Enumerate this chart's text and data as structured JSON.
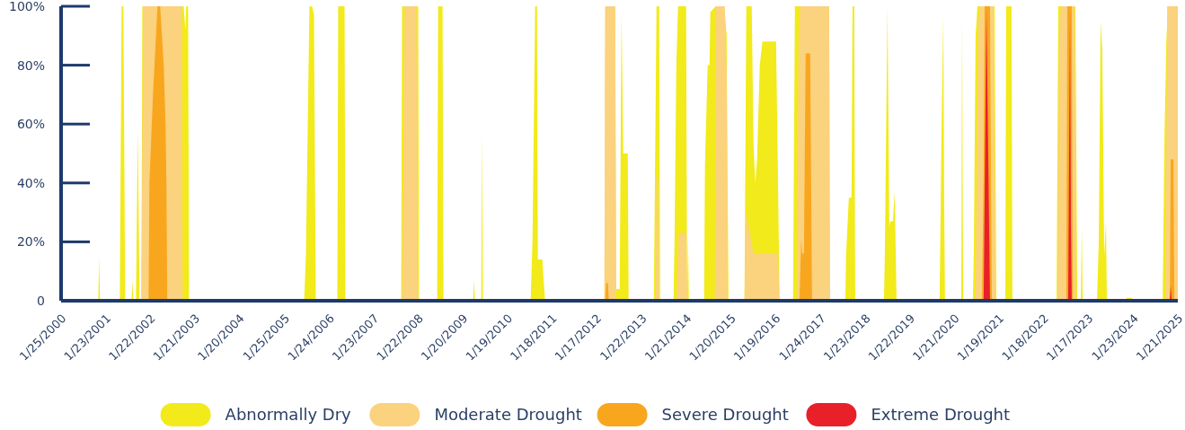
{
  "chart_data": {
    "type": "area",
    "legend": "bottom",
    "grid": false,
    "xlim": [
      "2000-01-25",
      "2025-01-21"
    ],
    "xticks": [
      {
        "value": "2000-01-25",
        "label": "1/25/2000"
      },
      {
        "value": "2001-01-23",
        "label": "1/23/2001"
      },
      {
        "value": "2002-01-22",
        "label": "1/22/2002"
      },
      {
        "value": "2003-01-21",
        "label": "1/21/2003"
      },
      {
        "value": "2004-01-20",
        "label": "1/20/2004"
      },
      {
        "value": "2005-01-25",
        "label": "1/25/2005"
      },
      {
        "value": "2006-01-24",
        "label": "1/24/2006"
      },
      {
        "value": "2007-01-23",
        "label": "1/23/2007"
      },
      {
        "value": "2008-01-22",
        "label": "1/22/2008"
      },
      {
        "value": "2009-01-20",
        "label": "1/20/2009"
      },
      {
        "value": "2010-01-19",
        "label": "1/19/2010"
      },
      {
        "value": "2011-01-18",
        "label": "1/18/2011"
      },
      {
        "value": "2012-01-17",
        "label": "1/17/2012"
      },
      {
        "value": "2013-01-22",
        "label": "1/22/2013"
      },
      {
        "value": "2014-01-21",
        "label": "1/21/2014"
      },
      {
        "value": "2015-01-20",
        "label": "1/20/2015"
      },
      {
        "value": "2016-01-19",
        "label": "1/19/2016"
      },
      {
        "value": "2017-01-24",
        "label": "1/24/2017"
      },
      {
        "value": "2018-01-23",
        "label": "1/23/2018"
      },
      {
        "value": "2019-01-22",
        "label": "1/22/2019"
      },
      {
        "value": "2020-01-21",
        "label": "1/21/2020"
      },
      {
        "value": "2021-01-19",
        "label": "1/19/2021"
      },
      {
        "value": "2022-01-18",
        "label": "1/18/2022"
      },
      {
        "value": "2023-01-17",
        "label": "1/17/2023"
      },
      {
        "value": "2024-01-23",
        "label": "1/23/2024"
      },
      {
        "value": "2025-01-21",
        "label": "1/21/2025"
      }
    ],
    "ylim": [
      0,
      100
    ],
    "yticks": [
      0,
      {
        "value": 20,
        "label": "20%"
      },
      {
        "value": 40,
        "label": "40%"
      },
      {
        "value": 60,
        "label": "60%"
      },
      {
        "value": 80,
        "label": "80%"
      },
      {
        "value": 100,
        "label": "100%"
      }
    ],
    "series": [
      {
        "name": "Abnormally Dry",
        "color": "#f2ea1a",
        "x": [
          "2000-11-24",
          "2000-12-01",
          "2000-12-08",
          "2001-05-19",
          "2001-06-03",
          "2001-06-17",
          "2001-07-02",
          "2001-08-23",
          "2001-08-30",
          "2001-09-06",
          "2001-09-28",
          "2001-10-13",
          "2001-10-28",
          "2001-11-11",
          "2001-11-19",
          "2002-10-23",
          "2002-11-06",
          "2002-11-13",
          "2002-11-28",
          "2002-12-06",
          "2005-07-04",
          "2005-07-18",
          "2005-08-16",
          "2005-09-07",
          "2005-09-22",
          "2005-10-07",
          "2006-04-01",
          "2006-04-08",
          "2006-05-30",
          "2006-06-06",
          "2007-09-05",
          "2007-09-12",
          "2008-01-22",
          "2008-01-29",
          "2008-06-25",
          "2008-07-03",
          "2008-08-08",
          "2008-08-16",
          "2009-04-15",
          "2009-04-22",
          "2009-04-29",
          "2009-06-20",
          "2009-06-27",
          "2009-07-04",
          "2010-07-29",
          "2010-08-13",
          "2010-09-04",
          "2010-09-19",
          "2010-09-26",
          "2010-11-02",
          "2010-11-09",
          "2010-11-24",
          "2012-03-23",
          "2012-03-30",
          "2012-06-19",
          "2012-06-27",
          "2012-07-26",
          "2012-08-10",
          "2012-08-24",
          "2012-09-30",
          "2012-10-07",
          "2013-05-01",
          "2013-05-23",
          "2013-06-14",
          "2013-06-21",
          "2013-10-09",
          "2013-10-17",
          "2013-11-01",
          "2013-11-15",
          "2014-01-20",
          "2014-01-28",
          "2014-02-04",
          "2014-02-11",
          "2014-06-16",
          "2014-06-23",
          "2014-07-15",
          "2014-07-30",
          "2014-08-06",
          "2014-09-19",
          "2014-11-10",
          "2014-12-02",
          "2014-12-17",
          "2015-01-01",
          "2015-05-12",
          "2015-05-27",
          "2015-07-10",
          "2015-07-25",
          "2015-08-08",
          "2015-08-23",
          "2015-09-14",
          "2015-10-06",
          "2016-01-25",
          "2016-02-08",
          "2016-02-23",
          "2016-06-12",
          "2016-06-27",
          "2017-04-03",
          "2017-04-10",
          "2017-08-13",
          "2017-08-20",
          "2017-09-11",
          "2017-10-03",
          "2017-10-11",
          "2017-10-25",
          "2017-11-02",
          "2018-06-25",
          "2018-07-02",
          "2018-07-24",
          "2018-08-08",
          "2018-08-15",
          "2018-09-06",
          "2018-09-21",
          "2018-10-06",
          "2019-09-23",
          "2019-10-08",
          "2019-10-23",
          "2019-10-30",
          "2019-11-06",
          "2020-03-18",
          "2020-03-25",
          "2020-04-02",
          "2020-06-21",
          "2020-06-29",
          "2020-07-13",
          "2020-07-28",
          "2020-12-15",
          "2020-12-30",
          "2021-03-13",
          "2021-03-20",
          "2021-05-03",
          "2021-05-10",
          "2022-05-06",
          "2022-05-20",
          "2022-10-07",
          "2022-10-22",
          "2022-11-20",
          "2022-11-28",
          "2022-12-05",
          "2023-04-01",
          "2023-04-16",
          "2023-05-01",
          "2023-05-15",
          "2023-05-30",
          "2023-06-14",
          "2023-06-21",
          "2023-11-22",
          "2023-11-30",
          "2024-01-13",
          "2024-01-20",
          "2024-09-19",
          "2024-10-04",
          "2024-10-19",
          "2024-11-02",
          "2025-01-21"
        ],
        "values": [
          0,
          15,
          0,
          0,
          100,
          100,
          0,
          0,
          7,
          0,
          0,
          58,
          0,
          0,
          100,
          100,
          92,
          100,
          100,
          0,
          0,
          15,
          100,
          100,
          97,
          0,
          0,
          100,
          100,
          0,
          0,
          100,
          100,
          0,
          0,
          100,
          100,
          0,
          0,
          7,
          0,
          0,
          57,
          0,
          0,
          20,
          100,
          100,
          14,
          14,
          9,
          0,
          0,
          100,
          100,
          4,
          4,
          98,
          50,
          50,
          0,
          0,
          100,
          100,
          0,
          0,
          20,
          80,
          100,
          100,
          0,
          23,
          0,
          0,
          46,
          80,
          80,
          98,
          100,
          100,
          98,
          90,
          0,
          0,
          100,
          100,
          53,
          40,
          48,
          80,
          88,
          88,
          47,
          0,
          0,
          100,
          100,
          0,
          0,
          16,
          35,
          35,
          100,
          100,
          0,
          0,
          15,
          100,
          25,
          27,
          27,
          37,
          0,
          0,
          55,
          97,
          35,
          0,
          0,
          97,
          0,
          0,
          18,
          90,
          100,
          100,
          0,
          0,
          100,
          100,
          0,
          0,
          100,
          100,
          0,
          0,
          25,
          0,
          0,
          20,
          95,
          85,
          15,
          27,
          0,
          0,
          1,
          1,
          0,
          0,
          55,
          88,
          100,
          100
        ]
      },
      {
        "name": "Moderate Drought",
        "color": "#fbd27e",
        "x": [
          "2001-11-11",
          "2001-11-26",
          "2002-10-08",
          "2002-10-15",
          "2007-09-12",
          "2007-10-03",
          "2008-01-07",
          "2008-01-22",
          "2012-03-23",
          "2012-03-30",
          "2012-06-19",
          "2012-06-27",
          "2013-05-15",
          "2013-05-23",
          "2013-06-06",
          "2013-06-14",
          "2013-11-01",
          "2013-11-22",
          "2014-01-20",
          "2014-01-28",
          "2014-09-12",
          "2014-09-19",
          "2014-12-02",
          "2014-12-17",
          "2014-12-24",
          "2015-05-12",
          "2015-05-27",
          "2015-07-25",
          "2016-02-08",
          "2016-02-23",
          "2016-07-12",
          "2016-07-27",
          "2016-08-10",
          "2017-04-03",
          "2017-04-10",
          "2020-07-13",
          "2020-08-04",
          "2020-08-19",
          "2020-12-07",
          "2020-12-22",
          "2022-05-13",
          "2022-05-27",
          "2022-06-11",
          "2022-09-30",
          "2022-10-14",
          "2024-10-11",
          "2024-10-26",
          "2025-01-21"
        ],
        "values": [
          0,
          100,
          100,
          0,
          0,
          100,
          100,
          0,
          0,
          100,
          100,
          0,
          0,
          42,
          42,
          0,
          0,
          23,
          23,
          0,
          0,
          100,
          100,
          77,
          0,
          0,
          30,
          16,
          16,
          0,
          0,
          88,
          100,
          100,
          0,
          0,
          95,
          100,
          100,
          0,
          0,
          90,
          100,
          100,
          0,
          0,
          100,
          100
        ]
      },
      {
        "name": "Severe Drought",
        "color": "#f9a61f",
        "x": [
          "2002-01-09",
          "2002-01-16",
          "2002-02-14",
          "2002-03-23",
          "2002-04-14",
          "2002-05-13",
          "2002-05-28",
          "2002-06-04",
          "2002-06-11",
          "2012-03-30",
          "2012-04-06",
          "2012-04-21",
          "2012-04-28",
          "2016-08-03",
          "2016-08-18",
          "2016-08-25",
          "2016-09-09",
          "2016-09-23",
          "2016-10-30",
          "2016-11-14",
          "2020-09-03",
          "2020-09-17",
          "2020-09-25",
          "2020-11-08",
          "2020-11-16",
          "2020-11-23",
          "2022-07-25",
          "2022-08-02",
          "2022-09-07",
          "2022-09-15",
          "2024-11-17",
          "2024-11-24",
          "2024-12-16",
          "2024-12-24"
        ],
        "values": [
          0,
          40,
          70,
          100,
          100,
          80,
          60,
          40,
          0,
          0,
          6,
          6,
          0,
          0,
          21,
          16,
          16,
          84,
          84,
          0,
          0,
          44,
          100,
          100,
          44,
          0,
          0,
          100,
          100,
          0,
          0,
          48,
          48,
          0
        ]
      },
      {
        "name": "Extreme Drought",
        "color": "#e8202a",
        "x": [
          "2020-09-17",
          "2020-10-10",
          "2020-11-08",
          "2022-08-09",
          "2022-08-24",
          "2022-08-31",
          "2022-09-07",
          "2024-11-17",
          "2024-11-24",
          "2024-12-02"
        ],
        "values": [
          0,
          99,
          0,
          0,
          99,
          26,
          0,
          0,
          5,
          0
        ]
      }
    ]
  }
}
